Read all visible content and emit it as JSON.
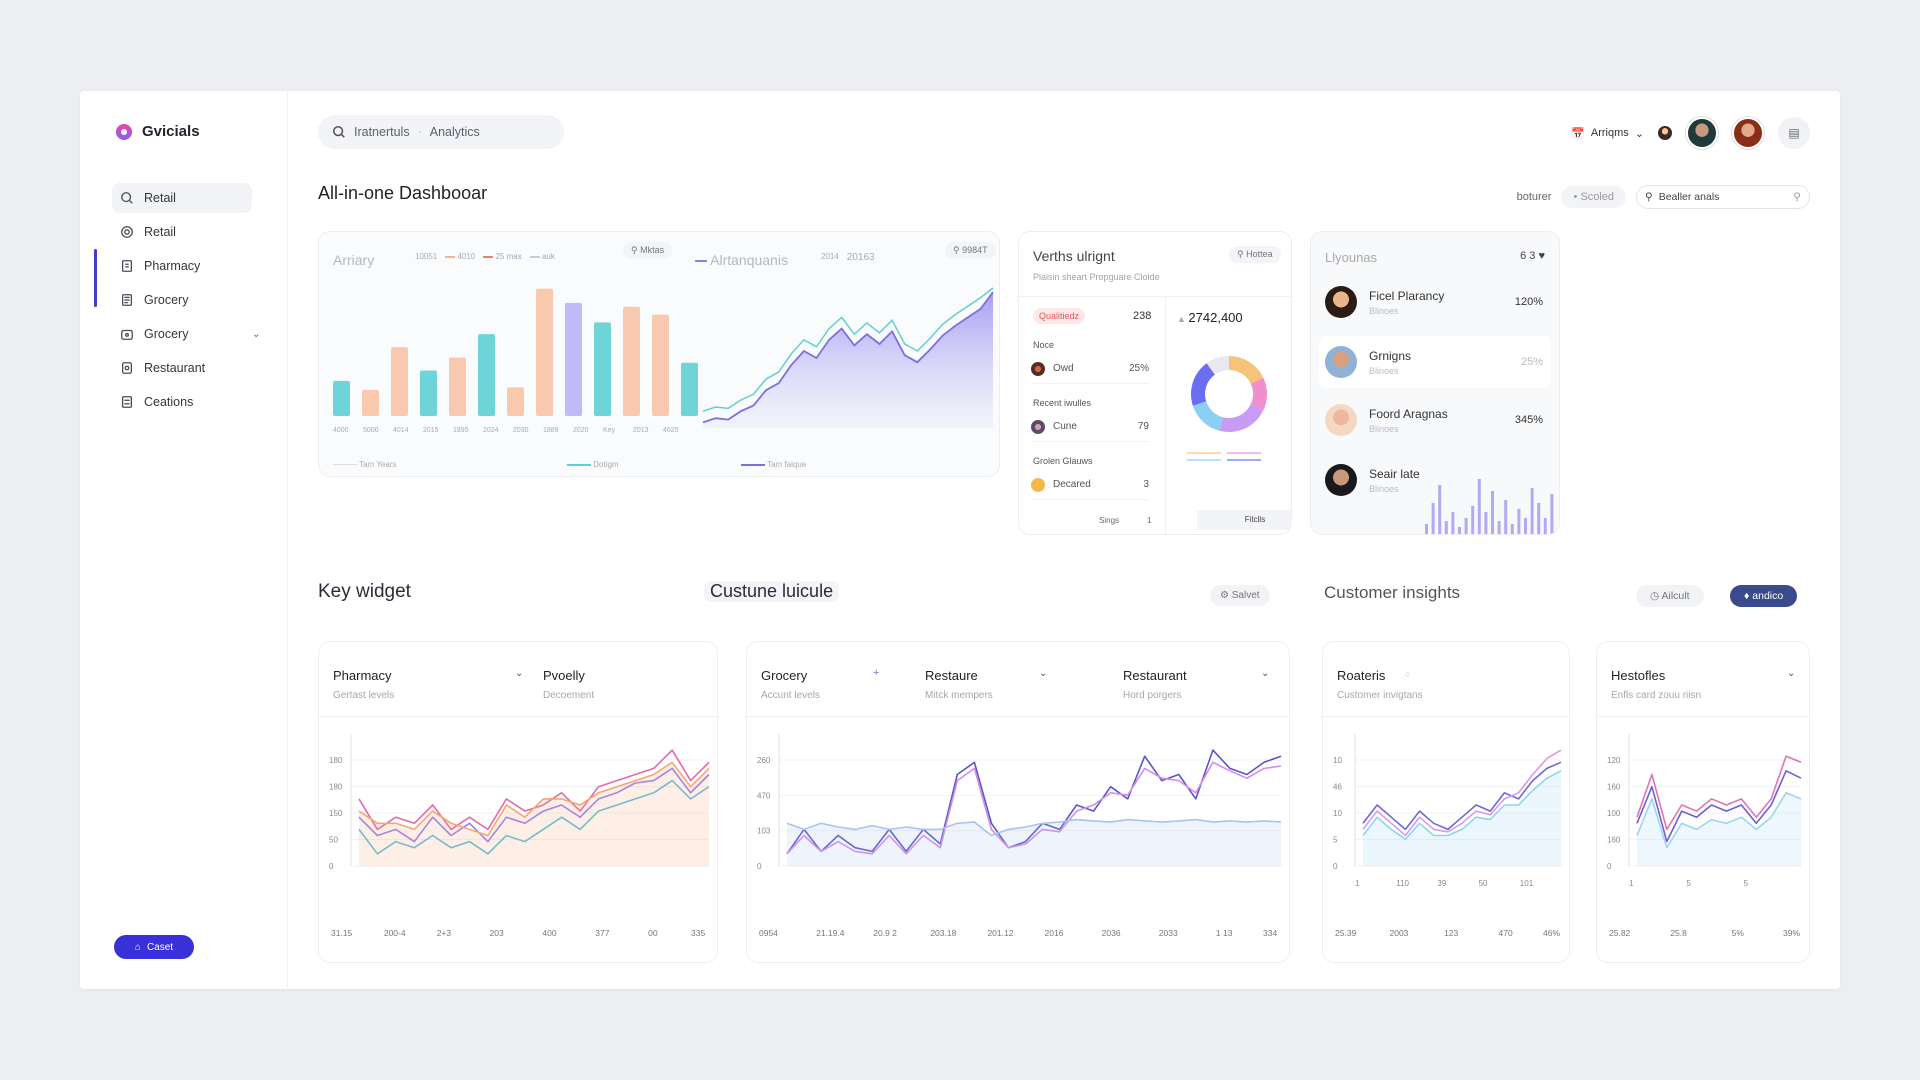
{
  "app": {
    "name": "Gvicials"
  },
  "sidebar": {
    "items": [
      {
        "label": "Retail",
        "icon": "search-icon"
      },
      {
        "label": "Retail",
        "icon": "globe-icon"
      },
      {
        "label": "Pharmacy",
        "icon": "clipboard-icon"
      },
      {
        "label": "Grocery",
        "icon": "document-icon"
      },
      {
        "label": "Grocery",
        "icon": "bag-icon"
      },
      {
        "label": "Restaurant",
        "icon": "receipt-icon"
      },
      {
        "label": "Ceations",
        "icon": "list-icon"
      }
    ],
    "cast_button": "Caset"
  },
  "header": {
    "search_text": "Iratnertuls",
    "search_sep": "·",
    "search_scope": "Analytics",
    "account_label": "Arriqms",
    "page_title": "All-in-one Dashbooar",
    "filter_label": "boturer",
    "filter_pill": "Scoled",
    "filter_search": "Bealler anals"
  },
  "top_chart": {
    "left_title": "Arriary",
    "left_tag": "Mktas",
    "left_legend": [
      "10051",
      "4010",
      "25 max",
      "auk"
    ],
    "x_labels": [
      "4000",
      "5000",
      "4014",
      "2015",
      "1895",
      "2024",
      "2030",
      "1889",
      "2020",
      "Key",
      "2013",
      "4025"
    ],
    "right_title": "Alrtanquanis",
    "right_legend": [
      "2014",
      "20163"
    ],
    "right_tag": "9984T",
    "bottom_legend": [
      "Tam Years",
      "Dotigm",
      "Tam faique"
    ],
    "colors": {
      "teal": "#5fcfd3",
      "peach": "#f8c3a6",
      "lavender": "#b8b4f5",
      "violet": "#8a7ff0"
    },
    "bars": [
      {
        "h": 0.27,
        "color": "teal"
      },
      {
        "h": 0.2,
        "color": "peach"
      },
      {
        "h": 0.53,
        "color": "peach"
      },
      {
        "h": 0.35,
        "color": "teal"
      },
      {
        "h": 0.45,
        "color": "peach"
      },
      {
        "h": 0.63,
        "color": "teal"
      },
      {
        "h": 0.22,
        "color": "peach"
      },
      {
        "h": 0.98,
        "color": "peach"
      },
      {
        "h": 0.87,
        "color": "lavender"
      },
      {
        "h": 0.72,
        "color": "teal"
      },
      {
        "h": 0.84,
        "color": "peach"
      },
      {
        "h": 0.78,
        "color": "peach"
      },
      {
        "h": 0.41,
        "color": "teal"
      }
    ],
    "area": [
      0.04,
      0.07,
      0.06,
      0.12,
      0.16,
      0.27,
      0.32,
      0.45,
      0.55,
      0.5,
      0.63,
      0.71,
      0.59,
      0.67,
      0.6,
      0.69,
      0.52,
      0.47,
      0.56,
      0.66,
      0.73,
      0.79,
      0.85,
      0.97
    ]
  },
  "insights_card": {
    "title": "Verths ulrignt",
    "subtitle": "Plaisin sheart Propguare Cloide",
    "tag": "Hottea",
    "badge": "Qualitiedz",
    "badge_value": "238",
    "total": "2742,400",
    "sections": [
      {
        "label": "Noce",
        "item": "Owd",
        "value": "25%"
      },
      {
        "label": "Recent iwulles",
        "item": "Cune",
        "value": "79"
      },
      {
        "label": "Grolen Glauws",
        "item": "Decared",
        "value": "3"
      }
    ],
    "footer_left": "Sings",
    "footer_mid": "1",
    "footer_right": "Fitclls",
    "donut": [
      {
        "value": 18,
        "color": "#f6c37a"
      },
      {
        "value": 14,
        "color": "#f08fcf"
      },
      {
        "value": 22,
        "color": "#c69cf4"
      },
      {
        "value": 16,
        "color": "#8ccff4"
      },
      {
        "value": 20,
        "color": "#6a6ff2"
      },
      {
        "value": 10,
        "color": "#e8e8ee"
      }
    ]
  },
  "leaders_card": {
    "title": "Llyounas",
    "count": "6 3",
    "people": [
      {
        "name": "Ficel Plarancy",
        "sub": "Blinoes",
        "pct": "120%"
      },
      {
        "name": "Grnigns",
        "sub": "Blinoes",
        "pct": "25%"
      },
      {
        "name": "Foord Aragnas",
        "sub": "Blinoes",
        "pct": "345%"
      },
      {
        "name": "Seair late",
        "sub": "Blinoes",
        "pct": ""
      }
    ],
    "spark": [
      0.2,
      0.55,
      0.85,
      0.25,
      0.4,
      0.15,
      0.3,
      0.5,
      0.95,
      0.4,
      0.75,
      0.25,
      0.6,
      0.2,
      0.45,
      0.3,
      0.8,
      0.55,
      0.3,
      0.7
    ]
  },
  "section2": {
    "title": "Key widget",
    "tab": "Custune luicule",
    "select_btn": "Salvet",
    "insights_title": "Customer insights",
    "btn_light": "Ailcult",
    "btn_dark": "andico"
  },
  "widgets": [
    {
      "title1": "Pharmacy",
      "sub1": "Gertast levels",
      "title2": "Pvoelly",
      "sub2": "Decoement",
      "y_labels": [
        "180",
        "180",
        "150",
        "50",
        "0"
      ],
      "x_labels": [
        "31.15",
        "200-4",
        "2+3",
        "203",
        "400",
        "377",
        "00",
        "335"
      ],
      "series": [
        {
          "color": "#e46aa8",
          "values": [
            0.55,
            0.3,
            0.4,
            0.35,
            0.5,
            0.3,
            0.4,
            0.3,
            0.55,
            0.45,
            0.5,
            0.6,
            0.45,
            0.65,
            0.7,
            0.75,
            0.8,
            0.95,
            0.7,
            0.85
          ]
        },
        {
          "color": "#9b7cf4",
          "values": [
            0.4,
            0.25,
            0.3,
            0.2,
            0.4,
            0.25,
            0.35,
            0.2,
            0.4,
            0.35,
            0.45,
            0.5,
            0.4,
            0.55,
            0.6,
            0.68,
            0.7,
            0.8,
            0.6,
            0.75
          ]
        },
        {
          "color": "#5bc0e0",
          "values": [
            0.3,
            0.1,
            0.2,
            0.15,
            0.25,
            0.15,
            0.2,
            0.1,
            0.25,
            0.2,
            0.3,
            0.4,
            0.3,
            0.45,
            0.5,
            0.55,
            0.6,
            0.7,
            0.55,
            0.65
          ]
        },
        {
          "color": "#f4a772",
          "values": [
            0.45,
            0.35,
            0.35,
            0.3,
            0.45,
            0.35,
            0.3,
            0.25,
            0.5,
            0.4,
            0.55,
            0.55,
            0.5,
            0.6,
            0.65,
            0.7,
            0.75,
            0.85,
            0.65,
            0.8
          ]
        }
      ]
    },
    {
      "title1": "Grocery",
      "sub1": "Accunt levels",
      "title2": "Restaure",
      "sub2": "Mitck mempers",
      "title3": "Restaurant",
      "sub3": "Hord porgers",
      "y_labels": [
        "260",
        "470",
        "103",
        "0"
      ],
      "x_labels": [
        "0954",
        "21.19.4",
        "20.9 2",
        "203.18",
        "201.12",
        "2016",
        "2036",
        "2033",
        "1 13",
        "334"
      ],
      "series": [
        {
          "color": "#5a56c8",
          "values": [
            0.1,
            0.3,
            0.12,
            0.25,
            0.15,
            0.12,
            0.3,
            0.12,
            0.3,
            0.18,
            0.75,
            0.85,
            0.35,
            0.15,
            0.2,
            0.35,
            0.3,
            0.5,
            0.45,
            0.65,
            0.55,
            0.9,
            0.7,
            0.75,
            0.55,
            0.95,
            0.8,
            0.75,
            0.85,
            0.9
          ]
        },
        {
          "color": "#d58ce8",
          "values": [
            0.1,
            0.25,
            0.12,
            0.2,
            0.12,
            0.1,
            0.25,
            0.1,
            0.25,
            0.15,
            0.7,
            0.8,
            0.3,
            0.15,
            0.18,
            0.3,
            0.28,
            0.45,
            0.5,
            0.6,
            0.58,
            0.8,
            0.72,
            0.7,
            0.6,
            0.85,
            0.78,
            0.72,
            0.8,
            0.82
          ]
        },
        {
          "color": "#a8c4ee",
          "values": [
            0.35,
            0.3,
            0.35,
            0.32,
            0.3,
            0.33,
            0.3,
            0.32,
            0.3,
            0.3,
            0.35,
            0.36,
            0.25,
            0.3,
            0.32,
            0.35,
            0.36,
            0.38,
            0.37,
            0.36,
            0.38,
            0.37,
            0.36,
            0.37,
            0.38,
            0.36,
            0.37,
            0.36,
            0.37,
            0.36
          ]
        }
      ]
    },
    {
      "title1": "Roateris",
      "sub1": "Customer invigtans",
      "y_labels": [
        "10",
        "46",
        "10",
        "5",
        "0"
      ],
      "x_labels_top": [
        "1",
        "110",
        "39",
        "50",
        "101"
      ],
      "x_labels": [
        "25.39",
        "2003",
        "123",
        "470",
        "46%"
      ],
      "series": [
        {
          "color": "#7366d8",
          "values": [
            0.35,
            0.5,
            0.4,
            0.3,
            0.45,
            0.35,
            0.3,
            0.4,
            0.5,
            0.45,
            0.6,
            0.55,
            0.7,
            0.8,
            0.85
          ]
        },
        {
          "color": "#d79be8",
          "values": [
            0.3,
            0.45,
            0.35,
            0.25,
            0.4,
            0.3,
            0.28,
            0.35,
            0.45,
            0.42,
            0.55,
            0.6,
            0.75,
            0.88,
            0.95
          ]
        },
        {
          "color": "#8fd3ee",
          "values": [
            0.25,
            0.4,
            0.3,
            0.22,
            0.35,
            0.25,
            0.25,
            0.3,
            0.4,
            0.38,
            0.5,
            0.5,
            0.62,
            0.72,
            0.78
          ]
        }
      ]
    },
    {
      "title1": "Hestofles",
      "sub1": "Enfls card zouu riisn",
      "y_labels": [
        "120",
        "160",
        "100",
        "160",
        "0"
      ],
      "x_labels_top": [
        "1",
        "5",
        "5"
      ],
      "x_labels": [
        "25.82",
        "25.8",
        "5%",
        "39%"
      ],
      "series": [
        {
          "color": "#e474b4",
          "values": [
            0.4,
            0.75,
            0.3,
            0.5,
            0.45,
            0.55,
            0.5,
            0.55,
            0.4,
            0.55,
            0.9,
            0.85
          ]
        },
        {
          "color": "#6c5fd8",
          "values": [
            0.35,
            0.65,
            0.2,
            0.45,
            0.4,
            0.5,
            0.45,
            0.5,
            0.35,
            0.5,
            0.78,
            0.72
          ]
        },
        {
          "color": "#9ed4f2",
          "values": [
            0.25,
            0.55,
            0.15,
            0.35,
            0.3,
            0.38,
            0.35,
            0.4,
            0.3,
            0.4,
            0.6,
            0.55
          ]
        }
      ]
    }
  ]
}
